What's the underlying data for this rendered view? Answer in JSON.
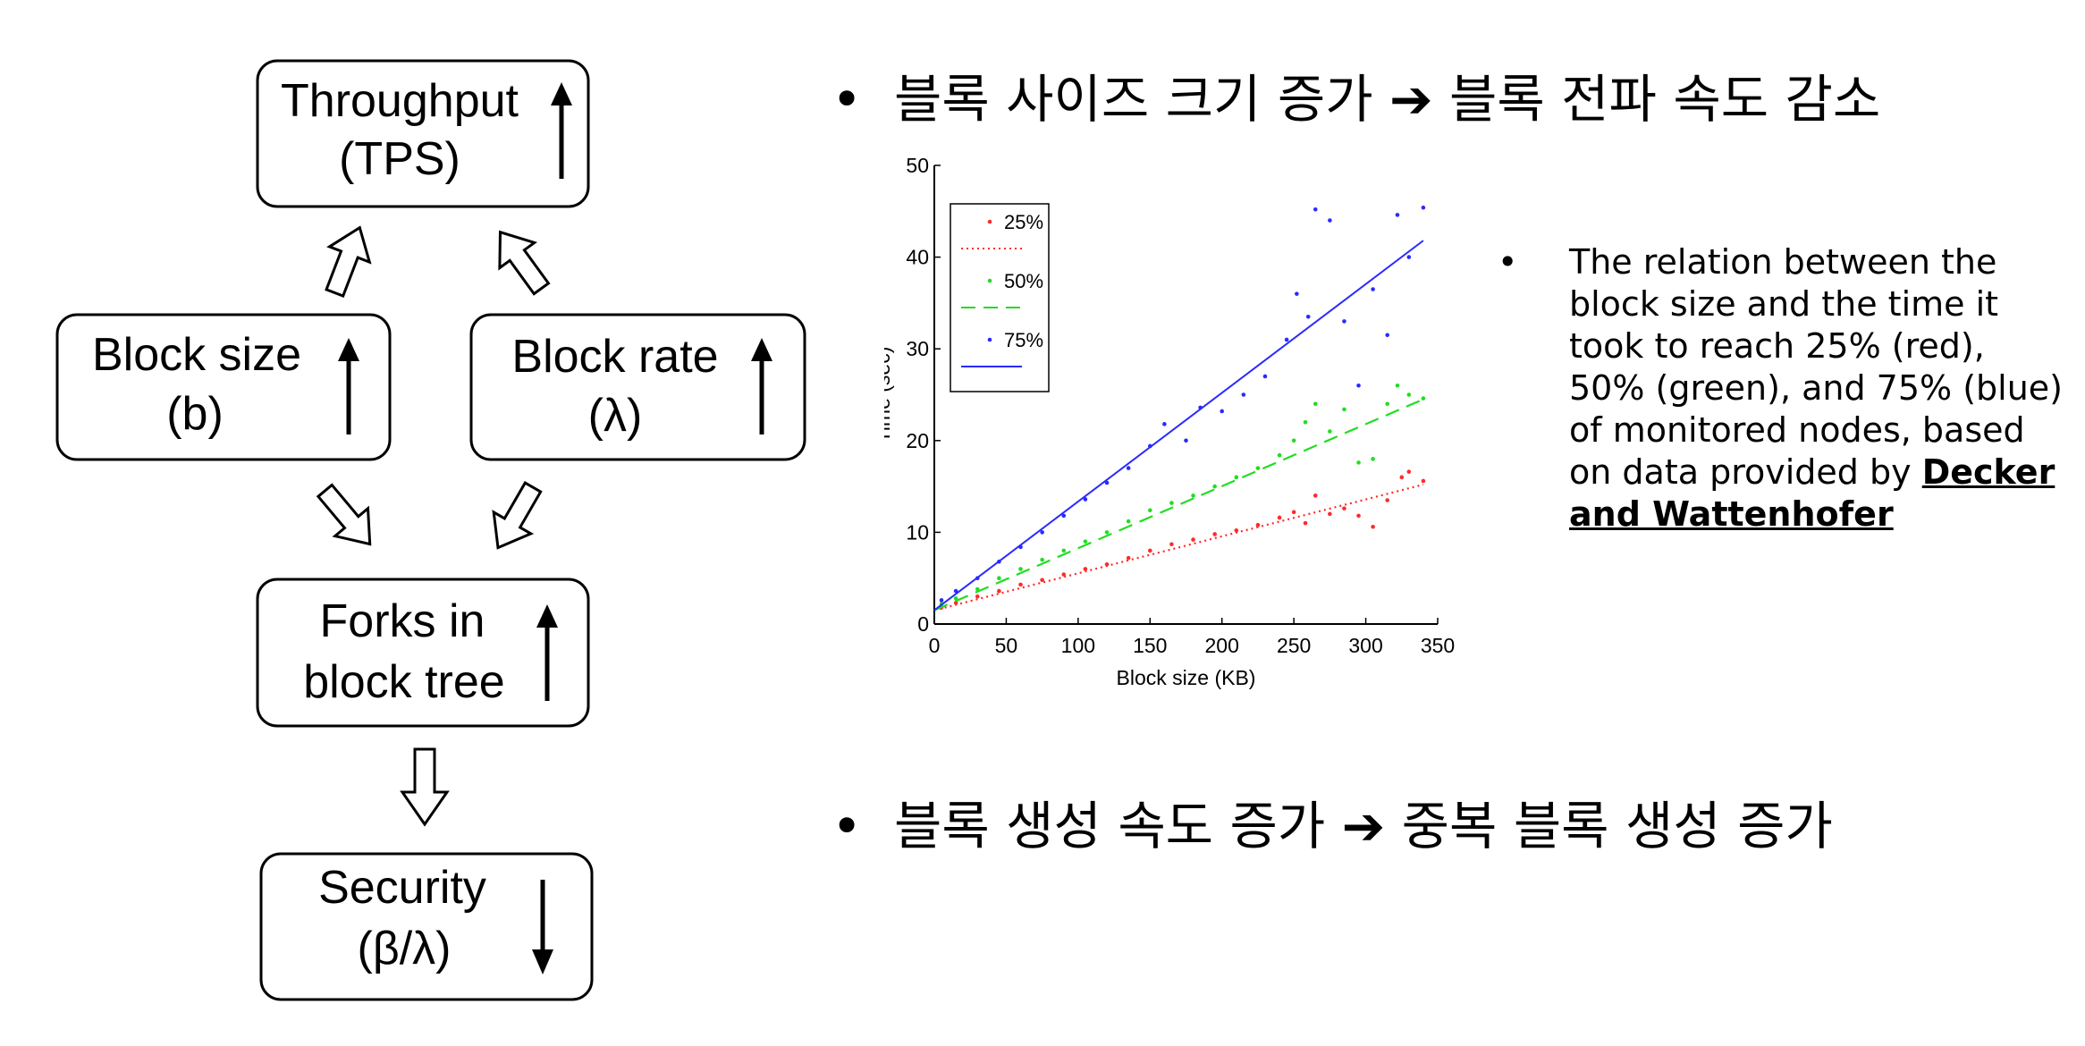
{
  "diagram": {
    "boxes": {
      "throughput": {
        "line1": "Throughput",
        "line2": "(TPS)",
        "trend": "up"
      },
      "block_size": {
        "line1": "Block size",
        "line2": "(b)",
        "trend": "up"
      },
      "block_rate": {
        "line1": "Block rate",
        "line2": "(λ)",
        "trend": "up"
      },
      "forks": {
        "line1": "Forks in",
        "line2": "block tree",
        "trend": "up"
      },
      "security": {
        "line1": "Security",
        "line2": "(β/λ)",
        "trend": "down"
      }
    }
  },
  "bullets": [
    {
      "dot": "•",
      "text": "블록 사이즈 크기 증가 ➔ 블록 전파 속도 감소"
    },
    {
      "dot": "•",
      "text": "블록 생성 속도 증가 ➔ 중복 블록 생성 증가"
    }
  ],
  "caption": {
    "dot": "•",
    "text": "The relation between the block size and the time it took to reach 25% (red), 50% (green), and 75% (blue) of monitored nodes, based on data provided by",
    "link": "Decker and Wattenhofer"
  },
  "chart_data": {
    "type": "scatter",
    "xlabel": "Block size (KB)",
    "ylabel": "Time (sec)",
    "xlim": [
      0,
      350
    ],
    "ylim": [
      0,
      50
    ],
    "xticks": [
      0,
      50,
      100,
      150,
      200,
      250,
      300,
      350
    ],
    "yticks": [
      0,
      10,
      20,
      30,
      40,
      50
    ],
    "legend_position": "top-left",
    "series": [
      {
        "name": "25%",
        "color": "#ff2a2a",
        "line_style": "dotted",
        "fit": [
          [
            0,
            1.5
          ],
          [
            340,
            15.2
          ]
        ],
        "points": [
          [
            5,
            1.8
          ],
          [
            15,
            2.3
          ],
          [
            30,
            3.0
          ],
          [
            45,
            3.6
          ],
          [
            60,
            4.3
          ],
          [
            75,
            4.8
          ],
          [
            90,
            5.4
          ],
          [
            105,
            6.0
          ],
          [
            120,
            6.5
          ],
          [
            135,
            7.2
          ],
          [
            150,
            8.0
          ],
          [
            165,
            8.7
          ],
          [
            180,
            9.2
          ],
          [
            195,
            9.8
          ],
          [
            210,
            10.2
          ],
          [
            225,
            10.8
          ],
          [
            240,
            11.6
          ],
          [
            250,
            12.2
          ],
          [
            258,
            11.0
          ],
          [
            265,
            14.0
          ],
          [
            275,
            12.0
          ],
          [
            285,
            12.6
          ],
          [
            295,
            11.8
          ],
          [
            305,
            10.6
          ],
          [
            315,
            13.5
          ],
          [
            325,
            16.0
          ],
          [
            330,
            16.6
          ],
          [
            340,
            15.6
          ]
        ]
      },
      {
        "name": "50%",
        "color": "#22dd22",
        "line_style": "dashed",
        "fit": [
          [
            0,
            1.5
          ],
          [
            340,
            24.5
          ]
        ],
        "points": [
          [
            5,
            2.2
          ],
          [
            15,
            2.8
          ],
          [
            30,
            3.8
          ],
          [
            45,
            5.0
          ],
          [
            60,
            6.0
          ],
          [
            75,
            7.0
          ],
          [
            90,
            8.0
          ],
          [
            105,
            9.0
          ],
          [
            120,
            10.0
          ],
          [
            135,
            11.2
          ],
          [
            150,
            12.4
          ],
          [
            165,
            13.2
          ],
          [
            180,
            14.0
          ],
          [
            195,
            15.0
          ],
          [
            210,
            16.0
          ],
          [
            225,
            17.0
          ],
          [
            240,
            18.4
          ],
          [
            250,
            20.0
          ],
          [
            258,
            22.0
          ],
          [
            265,
            24.0
          ],
          [
            275,
            21.0
          ],
          [
            285,
            23.4
          ],
          [
            295,
            17.6
          ],
          [
            305,
            18.0
          ],
          [
            315,
            24.0
          ],
          [
            322,
            26.0
          ],
          [
            330,
            25.0
          ],
          [
            340,
            24.6
          ]
        ]
      },
      {
        "name": "75%",
        "color": "#2a2aff",
        "line_style": "solid",
        "fit": [
          [
            0,
            1.5
          ],
          [
            340,
            41.8
          ]
        ],
        "points": [
          [
            5,
            2.6
          ],
          [
            15,
            3.6
          ],
          [
            30,
            5.0
          ],
          [
            45,
            6.8
          ],
          [
            60,
            8.4
          ],
          [
            75,
            10.0
          ],
          [
            90,
            11.8
          ],
          [
            105,
            13.6
          ],
          [
            120,
            15.4
          ],
          [
            135,
            17.0
          ],
          [
            150,
            19.4
          ],
          [
            160,
            21.8
          ],
          [
            175,
            20.0
          ],
          [
            185,
            23.6
          ],
          [
            200,
            23.2
          ],
          [
            215,
            25.0
          ],
          [
            230,
            27.0
          ],
          [
            245,
            31.0
          ],
          [
            252,
            36.0
          ],
          [
            260,
            33.5
          ],
          [
            265,
            45.2
          ],
          [
            275,
            44.0
          ],
          [
            285,
            33.0
          ],
          [
            295,
            26.0
          ],
          [
            305,
            36.5
          ],
          [
            315,
            31.5
          ],
          [
            322,
            44.6
          ],
          [
            330,
            40.0
          ],
          [
            340,
            45.4
          ]
        ]
      }
    ]
  }
}
